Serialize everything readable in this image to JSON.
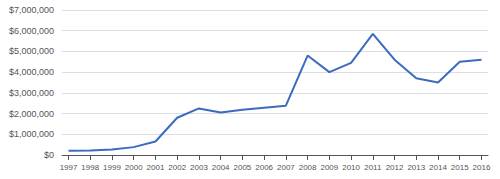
{
  "chart_data": {
    "type": "line",
    "x": [
      1997,
      1998,
      1999,
      2000,
      2001,
      2002,
      2003,
      2004,
      2005,
      2006,
      2007,
      2008,
      2009,
      2010,
      2011,
      2012,
      2013,
      2014,
      2015,
      2016
    ],
    "values": [
      200000,
      220000,
      270000,
      380000,
      650000,
      1800000,
      2250000,
      2050000,
      2180000,
      2280000,
      2380000,
      4800000,
      4000000,
      4450000,
      5850000,
      4600000,
      3700000,
      3500000,
      4500000,
      4600000
    ],
    "color": "#3a6bbf",
    "xlim": [
      1996.7,
      2016.3
    ],
    "xticks": [
      1997,
      1998,
      1999,
      2000,
      2001,
      2002,
      2003,
      2004,
      2005,
      2006,
      2007,
      2008,
      2009,
      2010,
      2011,
      2012,
      2013,
      2014,
      2015,
      2016
    ],
    "ylim": [
      0,
      7000000
    ],
    "yticks": [
      {
        "value": 0,
        "label": "$0"
      },
      {
        "value": 1000000,
        "label": "$1,000,000"
      },
      {
        "value": 2000000,
        "label": "$2,000,000"
      },
      {
        "value": 3000000,
        "label": "$3,000,000"
      },
      {
        "value": 4000000,
        "label": "$4,000,000"
      },
      {
        "value": 5000000,
        "label": "$5,000,000"
      },
      {
        "value": 6000000,
        "label": "$6,000,000"
      },
      {
        "value": 7000000,
        "label": "$7,000,000"
      }
    ],
    "grid": true
  }
}
